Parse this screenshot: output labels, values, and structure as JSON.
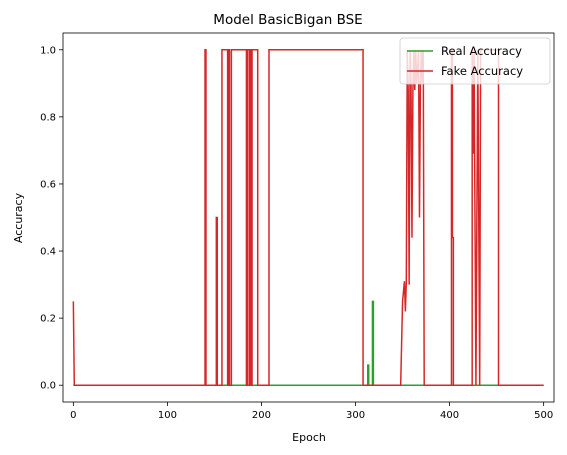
{
  "chart_data": {
    "type": "line",
    "title": "Model BasicBigan BSE",
    "xlabel": "Epoch",
    "ylabel": "Accuracy",
    "xlim": [
      -11,
      511
    ],
    "ylim": [
      -0.05,
      1.05
    ],
    "xticks": [
      0,
      100,
      200,
      300,
      400,
      500
    ],
    "xtick_labels": [
      "0",
      "100",
      "200",
      "300",
      "400",
      "500"
    ],
    "yticks": [
      0.0,
      0.2,
      0.4,
      0.6,
      0.8,
      1.0
    ],
    "ytick_labels": [
      "0.0",
      "0.2",
      "0.4",
      "0.6",
      "0.8",
      "1.0"
    ],
    "grid": false,
    "legend_position": "top-right",
    "series": [
      {
        "name": "Real Accuracy",
        "color": "#2ca02c",
        "points": [
          [
            0,
            0
          ],
          [
            313,
            0
          ],
          [
            313,
            0.06
          ],
          [
            314,
            0.06
          ],
          [
            314,
            0
          ],
          [
            318,
            0
          ],
          [
            318,
            0.25
          ],
          [
            319,
            0.25
          ],
          [
            319,
            0
          ],
          [
            500,
            0
          ]
        ]
      },
      {
        "name": "Fake Accuracy",
        "color": "#d62728",
        "points": [
          [
            0,
            0.25
          ],
          [
            1,
            0
          ],
          [
            140,
            0
          ],
          [
            140,
            1
          ],
          [
            141,
            1
          ],
          [
            141,
            0
          ],
          [
            152,
            0
          ],
          [
            152,
            0.5
          ],
          [
            153,
            0.5
          ],
          [
            153,
            0
          ],
          [
            158,
            0
          ],
          [
            158,
            1
          ],
          [
            164,
            1
          ],
          [
            164,
            0
          ],
          [
            165,
            0
          ],
          [
            165,
            1
          ],
          [
            166,
            1
          ],
          [
            166,
            0
          ],
          [
            168,
            0
          ],
          [
            168,
            1
          ],
          [
            184,
            1
          ],
          [
            184,
            0
          ],
          [
            185,
            0
          ],
          [
            185,
            1
          ],
          [
            187,
            1
          ],
          [
            187,
            0
          ],
          [
            188,
            0
          ],
          [
            188,
            1
          ],
          [
            189,
            1
          ],
          [
            189,
            0
          ],
          [
            190,
            0
          ],
          [
            190,
            1
          ],
          [
            196,
            1
          ],
          [
            196,
            0
          ],
          [
            208,
            0
          ],
          [
            208,
            1
          ],
          [
            308,
            1
          ],
          [
            308,
            0
          ],
          [
            348,
            0
          ],
          [
            350,
            0.25
          ],
          [
            352,
            0.31
          ],
          [
            353,
            0.22
          ],
          [
            354,
            0.31
          ],
          [
            355,
            1
          ],
          [
            356,
            0.88
          ],
          [
            357,
            0.3
          ],
          [
            358,
            1
          ],
          [
            359,
            0.9
          ],
          [
            360,
            0.44
          ],
          [
            361,
            0.88
          ],
          [
            362,
            1
          ],
          [
            363,
            0.88
          ],
          [
            364,
            1
          ],
          [
            365,
            0.9
          ],
          [
            366,
            0.94
          ],
          [
            367,
            1
          ],
          [
            368,
            0.5
          ],
          [
            369,
            0.9
          ],
          [
            370,
            1
          ],
          [
            371,
            0.9
          ],
          [
            372,
            1
          ],
          [
            373,
            0
          ],
          [
            402,
            0
          ],
          [
            402,
            1
          ],
          [
            403,
            1
          ],
          [
            403,
            0.44
          ],
          [
            404,
            0.44
          ],
          [
            404,
            0
          ],
          [
            424,
            0
          ],
          [
            424,
            1
          ],
          [
            425,
            0.69
          ],
          [
            426,
            1
          ],
          [
            428,
            0
          ],
          [
            430,
            1
          ],
          [
            432,
            0
          ],
          [
            433,
            1
          ],
          [
            452,
            1
          ],
          [
            452,
            0
          ],
          [
            500,
            0
          ]
        ]
      }
    ]
  }
}
